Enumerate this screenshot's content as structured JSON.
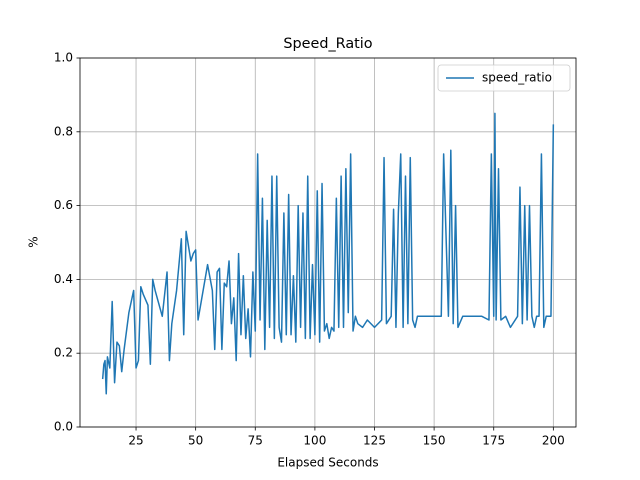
{
  "chart_data": {
    "type": "line",
    "title": "Speed_Ratio",
    "x_label": "Elapsed Seconds",
    "y_label": "%",
    "x": [
      11,
      11.5,
      12,
      12.5,
      13,
      14,
      15,
      16,
      17,
      18,
      19,
      20,
      22,
      24,
      25,
      26,
      27,
      28,
      30,
      31,
      32,
      33,
      36,
      38,
      39,
      40,
      42,
      44,
      45,
      46,
      48,
      49,
      50,
      51,
      55,
      57,
      58,
      59,
      60,
      61,
      62,
      63,
      64,
      65,
      66,
      67,
      68,
      69,
      70,
      71,
      72,
      73,
      74,
      75,
      76,
      77,
      78,
      79,
      80,
      81,
      82,
      83,
      84,
      85,
      86,
      87,
      88,
      89,
      90,
      91,
      92,
      93,
      94,
      95,
      96,
      97,
      98,
      99,
      100,
      101,
      102,
      103,
      104,
      105,
      106,
      107,
      108,
      109,
      110,
      111,
      112,
      113,
      114,
      115,
      116,
      117,
      118,
      120,
      122,
      125,
      128,
      129,
      130,
      132,
      133,
      134,
      135,
      136,
      137,
      138,
      139,
      140,
      141,
      142,
      143,
      145,
      150,
      153,
      154,
      156,
      157,
      158,
      159,
      160,
      162,
      165,
      170,
      173,
      174,
      175,
      175.5,
      176,
      177,
      178,
      180,
      182,
      185,
      186,
      187,
      188,
      189,
      190,
      191,
      192,
      193,
      194,
      195,
      196,
      197,
      198,
      199,
      200
    ],
    "series": [
      {
        "name": "speed_ratio",
        "color": "#1f77b4",
        "values": [
          0.13,
          0.17,
          0.18,
          0.09,
          0.19,
          0.16,
          0.34,
          0.12,
          0.23,
          0.22,
          0.15,
          0.21,
          0.31,
          0.37,
          0.16,
          0.18,
          0.38,
          0.36,
          0.33,
          0.17,
          0.4,
          0.37,
          0.3,
          0.42,
          0.18,
          0.28,
          0.37,
          0.51,
          0.25,
          0.53,
          0.45,
          0.47,
          0.48,
          0.29,
          0.44,
          0.37,
          0.21,
          0.42,
          0.43,
          0.21,
          0.39,
          0.38,
          0.45,
          0.28,
          0.35,
          0.18,
          0.47,
          0.25,
          0.41,
          0.24,
          0.32,
          0.19,
          0.42,
          0.26,
          0.74,
          0.29,
          0.62,
          0.21,
          0.56,
          0.27,
          0.68,
          0.24,
          0.68,
          0.27,
          0.23,
          0.58,
          0.25,
          0.63,
          0.25,
          0.41,
          0.23,
          0.6,
          0.27,
          0.58,
          0.24,
          0.68,
          0.24,
          0.44,
          0.25,
          0.64,
          0.23,
          0.66,
          0.26,
          0.28,
          0.24,
          0.27,
          0.26,
          0.62,
          0.27,
          0.68,
          0.27,
          0.7,
          0.31,
          0.74,
          0.26,
          0.3,
          0.28,
          0.27,
          0.29,
          0.27,
          0.29,
          0.73,
          0.28,
          0.3,
          0.59,
          0.27,
          0.58,
          0.74,
          0.27,
          0.68,
          0.28,
          0.73,
          0.29,
          0.27,
          0.3,
          0.3,
          0.3,
          0.3,
          0.74,
          0.3,
          0.75,
          0.28,
          0.6,
          0.27,
          0.3,
          0.3,
          0.3,
          0.29,
          0.74,
          0.3,
          0.85,
          0.29,
          0.7,
          0.29,
          0.3,
          0.27,
          0.3,
          0.65,
          0.28,
          0.6,
          0.29,
          0.6,
          0.3,
          0.27,
          0.3,
          0.3,
          0.74,
          0.27,
          0.3,
          0.3,
          0.3,
          0.82
        ]
      }
    ],
    "xlim": [
      1.5,
      209.5
    ],
    "xticks": [
      25,
      50,
      75,
      100,
      125,
      150,
      175,
      200
    ],
    "ylim": [
      0,
      1
    ],
    "yticks": [
      {
        "value": 0,
        "label": "0.0"
      },
      0.2,
      0.4,
      0.6,
      0.8,
      {
        "value": 1,
        "label": "1.0"
      }
    ],
    "grid": true,
    "legend": "upper right"
  }
}
